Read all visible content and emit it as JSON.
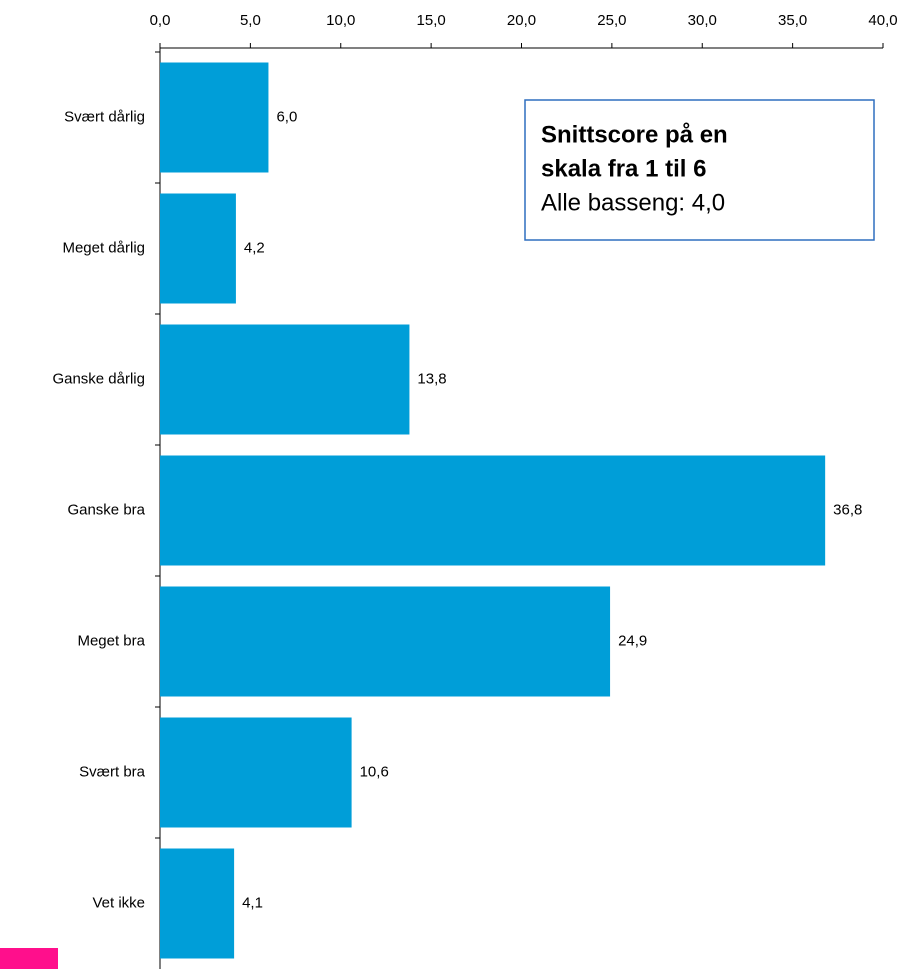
{
  "chart_data": {
    "type": "barh",
    "categories": [
      "Svært dårlig",
      "Meget dårlig",
      "Ganske dårlig",
      "Ganske bra",
      "Meget bra",
      "Svært bra",
      "Vet ikke"
    ],
    "values": [
      6.0,
      4.2,
      13.8,
      36.8,
      24.9,
      10.6,
      4.1
    ],
    "value_labels": [
      "6,0",
      "4,2",
      "13,8",
      "36,8",
      "24,9",
      "10,6",
      "4,1"
    ],
    "color": "#009ed8",
    "xlim": [
      0,
      40
    ],
    "xticks": [
      {
        "value": 0,
        "label": "0,0"
      },
      {
        "value": 5,
        "label": "5,0"
      },
      {
        "value": 10,
        "label": "10,0"
      },
      {
        "value": 15,
        "label": "15,0"
      },
      {
        "value": 20,
        "label": "20,0"
      },
      {
        "value": 25,
        "label": "25,0"
      },
      {
        "value": 30,
        "label": "30,0"
      },
      {
        "value": 35,
        "label": "35,0"
      },
      {
        "value": 40,
        "label": "40,0"
      }
    ],
    "annotations": [
      "Snittscore på en",
      "skala fra 1 til 6",
      "Alle basseng: 4,0"
    ]
  }
}
